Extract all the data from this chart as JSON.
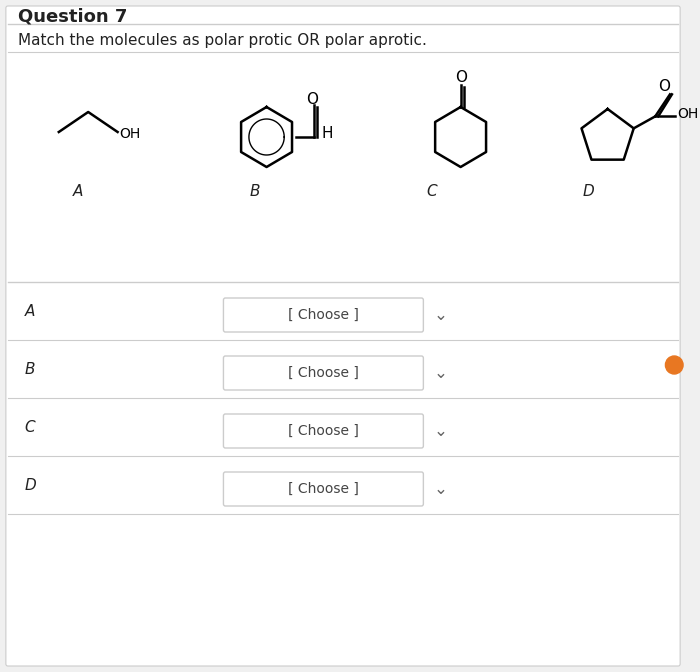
{
  "title": "Question 7",
  "subtitle": "Match the molecules as polar protic OR polar aprotic.",
  "background_color": "#f0f0f0",
  "panel_color": "#ffffff",
  "molecule_labels": [
    "A",
    "B",
    "C",
    "D"
  ],
  "row_labels": [
    "A",
    "B",
    "C",
    "D"
  ],
  "dropdown_text": "[ Choose ]",
  "dropdown_color": "#ffffff",
  "dropdown_border": "#cccccc",
  "line_color": "#cccccc",
  "text_color": "#222222",
  "title_fontsize": 13,
  "subtitle_fontsize": 11,
  "label_fontsize": 11,
  "orange_dot_color": "#e87722"
}
